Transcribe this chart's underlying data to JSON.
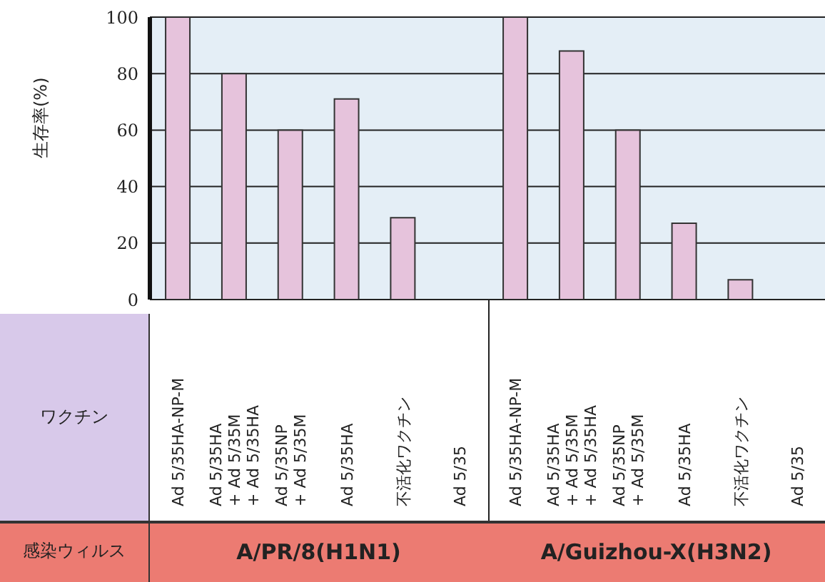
{
  "chart_data": {
    "type": "bar",
    "ylabel": "生存率(%)",
    "categories": [
      "Ad 5/35HA-NP-M",
      "Ad 5/35HA\n+ Ad 5/35M\n+ Ad 5/35HA",
      "Ad 5/35NP\n+ Ad 5/35M",
      "Ad 5/35HA",
      "不活化ワクチン",
      "Ad 5/35",
      "Ad 5/35HA-NP-M",
      "Ad 5/35HA\n+ Ad 5/35M\n+ Ad 5/35HA",
      "Ad 5/35NP\n+ Ad 5/35M",
      "Ad 5/35HA",
      "不活化ワクチン",
      "Ad 5/35"
    ],
    "values": [
      100,
      80,
      60,
      71,
      29,
      0,
      100,
      88,
      60,
      27,
      7,
      0
    ],
    "color": "#e6c3dc",
    "ylim": [
      0,
      100
    ],
    "yticks": [
      0,
      20,
      40,
      60,
      80,
      100
    ],
    "grid": "y",
    "legend": false,
    "annotations": [
      "ワクチン",
      "感染ウィルス",
      "A/PR/8(H1N1)",
      "A/Guizhou-X(H3N2)"
    ]
  }
}
